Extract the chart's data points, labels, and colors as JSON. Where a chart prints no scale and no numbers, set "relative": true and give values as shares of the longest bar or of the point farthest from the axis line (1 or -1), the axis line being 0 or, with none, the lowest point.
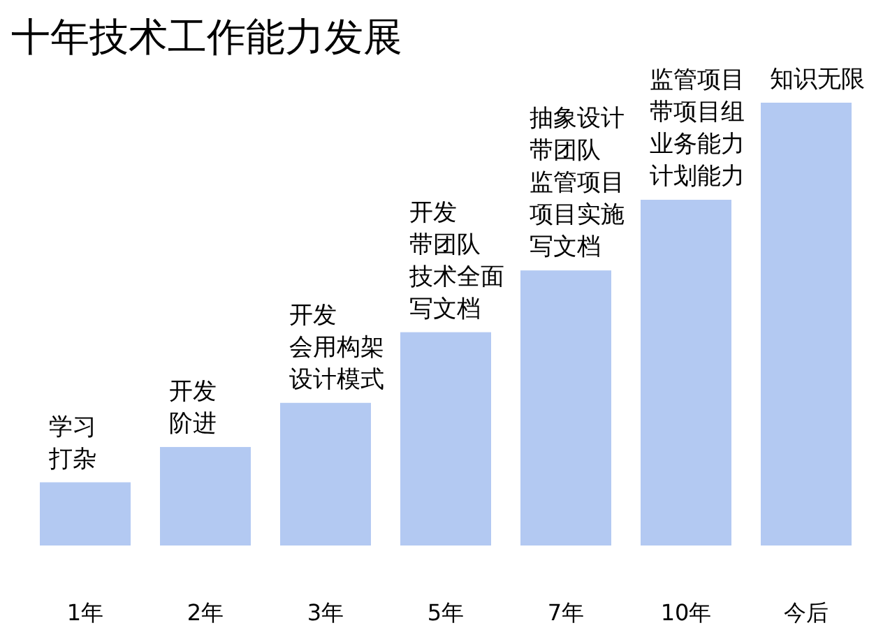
{
  "chart_data": {
    "type": "bar",
    "title": "十年技术工作能力发展",
    "relative": true,
    "color": "#b3c9f2",
    "categories": [
      "1年",
      "2年",
      "3年",
      "5年",
      "7年",
      "10年",
      "今后"
    ],
    "values": [
      0.14,
      0.22,
      0.32,
      0.48,
      0.62,
      0.78,
      1
    ],
    "annotations": [
      {
        "text": "学习打杂",
        "x": "1年",
        "y": 0.14
      },
      {
        "text": "开发阶进",
        "x": "2年",
        "y": 0.22
      },
      {
        "text": "开发会用构架设计模式",
        "x": "3年",
        "y": 0.32
      },
      {
        "text": "开发带团队技术全面写文档",
        "x": "5年",
        "y": 0.48
      },
      {
        "text": "抽象设计带团队监管项目项目实施写文档",
        "x": "7年",
        "y": 0.62
      },
      {
        "text": "监管项目带项目组业务能力计划能力",
        "x": "10年",
        "y": 0.78
      },
      {
        "text": "知识无限",
        "x": "今后",
        "y": 1
      }
    ]
  }
}
